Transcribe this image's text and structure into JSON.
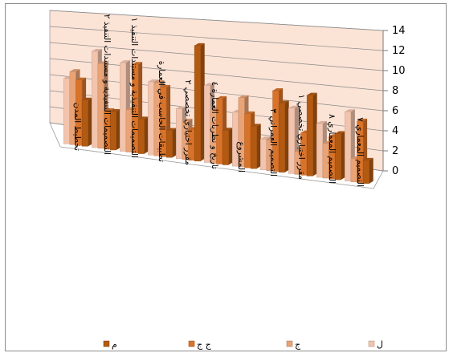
{
  "chart_data": {
    "type": "bar",
    "title": "",
    "xlabel": "",
    "ylabel": "",
    "ylim": [
      0,
      14
    ],
    "yticks": [
      "0",
      "2",
      "4",
      "6",
      "8",
      "10",
      "12",
      "14"
    ],
    "grid": true,
    "legend_position": "bottom",
    "categories": [
      "تخطيط المدن",
      "التصميمات التنفيذية و مستندات التنفيذ ٢",
      "التصميمات التنفيذية و مستندات التنفيذ ١",
      "تطبيقات الحاسب في العمارة",
      "مقرر اختياري تخصصي ٢",
      "تاريخ و نظريات العمارة ٤",
      "المشروع",
      "التصميم العمراني ٣",
      "مقرر اختياري تخصصي ١",
      "التصميم المعماري ٨",
      "التصميم المعماري ٧"
    ],
    "series": [
      {
        "name": "ل",
        "color": "#f2c4ad",
        "values": [
          8.5,
          12.5,
          11.5,
          9.5,
          6.5,
          10,
          7,
          4,
          8.5,
          7,
          9
        ]
      },
      {
        "name": "ج",
        "color": "#e8a377",
        "values": [
          9.5,
          11,
          5.5,
          9.5,
          5,
          7,
          9,
          4,
          3,
          4.5,
          3
        ]
      },
      {
        "name": "ج ج",
        "color": "#d9732a",
        "values": [
          8.5,
          5,
          11.5,
          9,
          4,
          8.5,
          7,
          10.5,
          5.5,
          5.5,
          8
        ]
      },
      {
        "name": "م",
        "color": "#b35a12",
        "values": [
          6,
          5,
          4.5,
          3.5,
          15,
          4.5,
          5.5,
          9,
          10.5,
          6,
          3
        ]
      }
    ]
  }
}
